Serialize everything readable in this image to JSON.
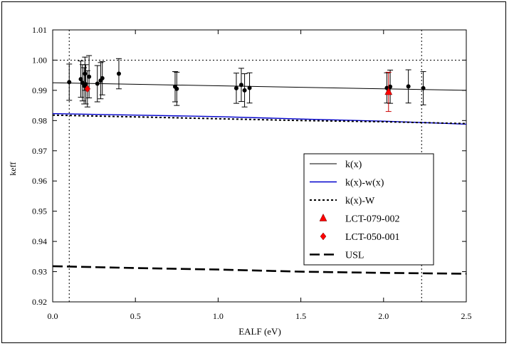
{
  "chart_data": {
    "type": "scatter",
    "title": "",
    "xlabel": "EALF (eV)",
    "ylabel": "keff",
    "xlim": [
      0.0,
      2.5
    ],
    "ylim": [
      0.92,
      1.01
    ],
    "x_ticks": [
      0.0,
      0.5,
      1.0,
      1.5,
      2.0,
      2.5
    ],
    "x_tick_labels": [
      "0.0",
      "0.5",
      "1.0",
      "1.5",
      "2.0",
      "2.5"
    ],
    "y_ticks": [
      0.92,
      0.93,
      0.94,
      0.95,
      0.96,
      0.97,
      0.98,
      0.99,
      1.0,
      1.01
    ],
    "y_tick_labels": [
      "0.92",
      "0.93",
      "0.94",
      "0.95",
      "0.96",
      "0.97",
      "0.98",
      "0.99",
      "1.00",
      "1.01"
    ],
    "grid": false,
    "reference_lines": {
      "horizontal_y": 1.0,
      "vertical_x": [
        0.1,
        2.23
      ]
    },
    "legend_position": "lower-right",
    "colors": {
      "k_x": "#000000",
      "k_w_x": "#0000cc",
      "k_W": "#000000",
      "red_marker": "#ff0000",
      "data_points": "#000000",
      "red_error": "#cc0000"
    },
    "series": [
      {
        "name": "k(x)",
        "style": "solid",
        "x": [
          0.0,
          0.5,
          1.0,
          1.5,
          2.0,
          2.5
        ],
        "y": [
          0.9925,
          0.992,
          0.9915,
          0.991,
          0.9905,
          0.99
        ]
      },
      {
        "name": "k(x)-w(x)",
        "style": "solid-blue",
        "x": [
          0.0,
          0.5,
          1.0,
          1.5,
          2.0,
          2.5
        ],
        "y": [
          0.9823,
          0.9818,
          0.9813,
          0.9805,
          0.9798,
          0.9788
        ]
      },
      {
        "name": "k(x)-W",
        "style": "dotted",
        "x": [
          0.0,
          0.5,
          1.0,
          1.5,
          2.0,
          2.5
        ],
        "y": [
          0.9818,
          0.9812,
          0.9806,
          0.98,
          0.9796,
          0.979
        ]
      },
      {
        "name": "USL",
        "style": "dashed",
        "x": [
          0.0,
          0.5,
          1.0,
          1.5,
          2.0,
          2.5
        ],
        "y": [
          0.9318,
          0.9312,
          0.9307,
          0.93,
          0.9296,
          0.9293
        ]
      }
    ],
    "points": [
      {
        "x": 0.1,
        "y": 0.9927,
        "err": 0.006,
        "marker": "circle"
      },
      {
        "x": 0.17,
        "y": 0.9937,
        "err": 0.006,
        "marker": "circle"
      },
      {
        "x": 0.18,
        "y": 0.9925,
        "err": 0.006,
        "marker": "circle"
      },
      {
        "x": 0.19,
        "y": 0.9915,
        "err": 0.006,
        "marker": "circle"
      },
      {
        "x": 0.195,
        "y": 0.9955,
        "err": 0.0055,
        "marker": "circle"
      },
      {
        "x": 0.2,
        "y": 0.992,
        "err": 0.0065,
        "marker": "circle"
      },
      {
        "x": 0.21,
        "y": 0.9905,
        "err": 0.006,
        "marker": "circle"
      },
      {
        "x": 0.22,
        "y": 0.9945,
        "err": 0.007,
        "marker": "circle"
      },
      {
        "x": 0.27,
        "y": 0.9922,
        "err": 0.006,
        "marker": "circle"
      },
      {
        "x": 0.29,
        "y": 0.9932,
        "err": 0.006,
        "marker": "circle"
      },
      {
        "x": 0.3,
        "y": 0.994,
        "err": 0.0055,
        "marker": "circle"
      },
      {
        "x": 0.4,
        "y": 0.9955,
        "err": 0.005,
        "marker": "circle"
      },
      {
        "x": 0.74,
        "y": 0.9912,
        "err": 0.005,
        "marker": "circle"
      },
      {
        "x": 0.75,
        "y": 0.9905,
        "err": 0.0055,
        "marker": "circle"
      },
      {
        "x": 1.11,
        "y": 0.9907,
        "err": 0.005,
        "marker": "circle"
      },
      {
        "x": 1.14,
        "y": 0.9918,
        "err": 0.0055,
        "marker": "circle"
      },
      {
        "x": 1.16,
        "y": 0.99,
        "err": 0.0055,
        "marker": "circle"
      },
      {
        "x": 1.19,
        "y": 0.9908,
        "err": 0.005,
        "marker": "circle"
      },
      {
        "x": 2.02,
        "y": 0.9908,
        "err": 0.005,
        "marker": "circle"
      },
      {
        "x": 2.04,
        "y": 0.9912,
        "err": 0.0055,
        "marker": "circle"
      },
      {
        "x": 2.15,
        "y": 0.9913,
        "err": 0.0055,
        "marker": "circle"
      },
      {
        "x": 2.24,
        "y": 0.9907,
        "err": 0.0055,
        "marker": "circle"
      },
      {
        "x": 0.21,
        "y": 0.9905,
        "err": 0.0,
        "marker": "red-diamond",
        "series": "LCT-050-001"
      },
      {
        "x": 2.03,
        "y": 0.9895,
        "err": 0.0065,
        "marker": "red-triangle",
        "series": "LCT-079-002"
      }
    ],
    "legend": [
      {
        "label": "k(x)",
        "symbol": "line-solid"
      },
      {
        "label": "k(x)-w(x)",
        "symbol": "line-blue"
      },
      {
        "label": "k(x)-W",
        "symbol": "line-dotted"
      },
      {
        "label": "LCT-079-002",
        "symbol": "red-triangle"
      },
      {
        "label": "LCT-050-001",
        "symbol": "red-diamond"
      },
      {
        "label": "USL",
        "symbol": "line-dashed"
      }
    ]
  }
}
